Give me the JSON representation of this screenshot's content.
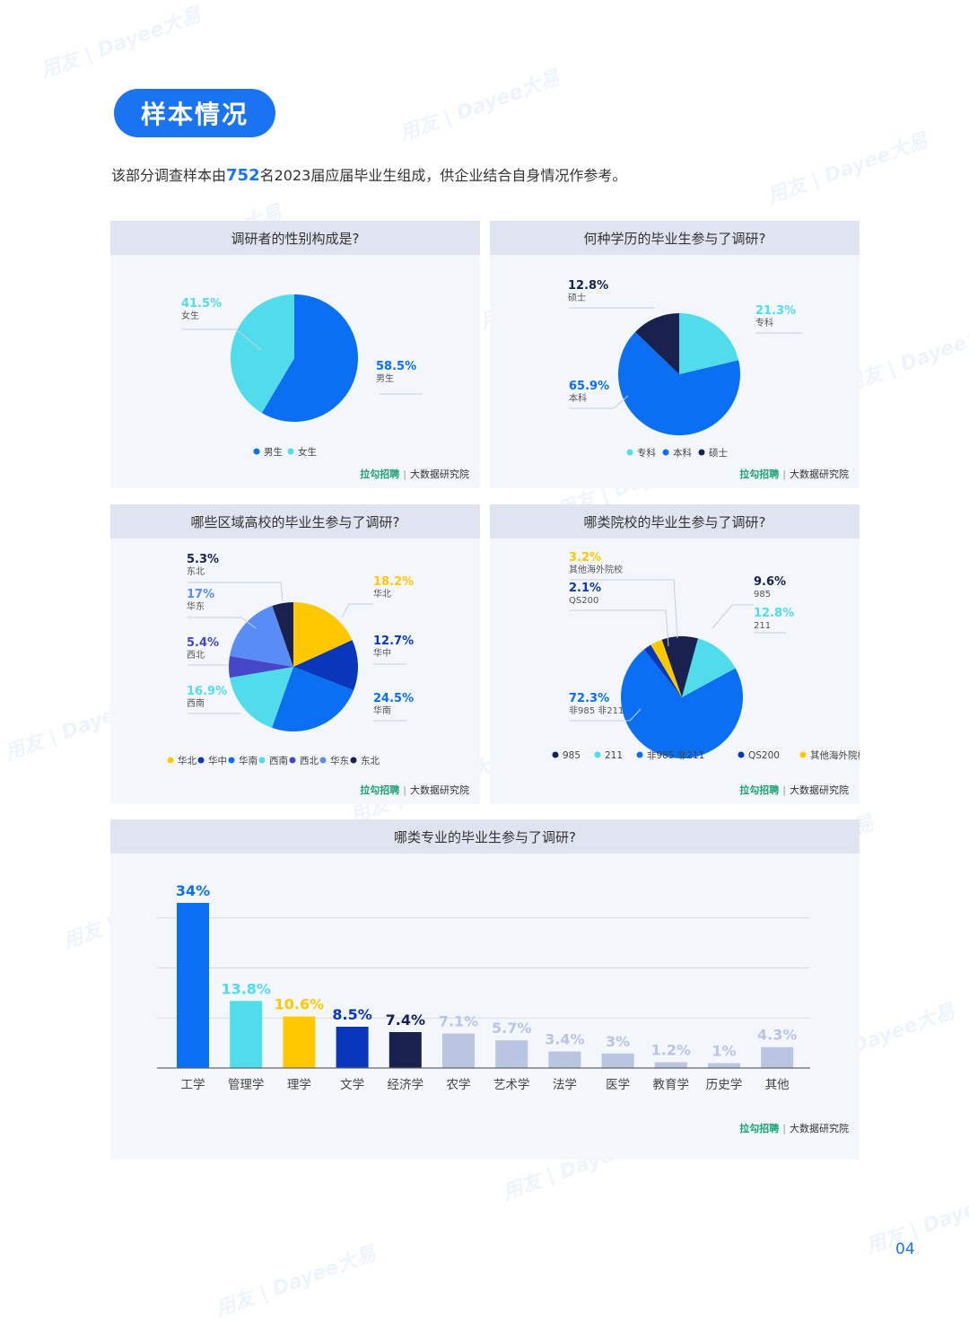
{
  "header": {
    "title": "样本情况",
    "intro_before": "该部分调查样本由",
    "intro_number": "752",
    "intro_after": "名2023届应届毕业生组成，供企业结合自身情况作参考。"
  },
  "brand": {
    "name": "拉勾招聘",
    "separator": "|",
    "unit": "大数据研究院"
  },
  "watermark": "用友 | Dayee大易",
  "page_number": "04",
  "colors": {
    "blue": "#0a6ff0",
    "cyan": "#50dceb",
    "navy": "#19224f",
    "yellow": "#ffc800",
    "darkblue": "#0a37b9",
    "indigo": "#4646c8",
    "periwinkle": "#5a8cf5",
    "lightgray": "#b9c5e1"
  },
  "chart_data": [
    {
      "type": "pie",
      "title": "调研者的性别构成是?",
      "slices": [
        {
          "label": "男生",
          "value": 58.5,
          "display": "58.5%",
          "color": "#0a6ff0"
        },
        {
          "label": "女生",
          "value": 41.5,
          "display": "41.5%",
          "color": "#50dceb"
        }
      ],
      "legend": [
        "男生",
        "女生"
      ],
      "legend_position": "bottom"
    },
    {
      "type": "pie",
      "title": "何种学历的毕业生参与了调研?",
      "slices": [
        {
          "label": "专科",
          "value": 21.3,
          "display": "21.3%",
          "color": "#50dceb"
        },
        {
          "label": "本科",
          "value": 65.9,
          "display": "65.9%",
          "color": "#0a6ff0"
        },
        {
          "label": "硕士",
          "value": 12.8,
          "display": "12.8%",
          "color": "#19224f"
        }
      ],
      "legend": [
        "专科",
        "本科",
        "硕士"
      ],
      "legend_position": "bottom"
    },
    {
      "type": "pie",
      "title": "哪些区域高校的毕业生参与了调研?",
      "slices": [
        {
          "label": "华北",
          "value": 18.2,
          "display": "18.2%",
          "color": "#ffc800"
        },
        {
          "label": "华中",
          "value": 12.7,
          "display": "12.7%",
          "color": "#0a37b9"
        },
        {
          "label": "华南",
          "value": 24.5,
          "display": "24.5%",
          "color": "#0a6ff0"
        },
        {
          "label": "西南",
          "value": 16.9,
          "display": "16.9%",
          "color": "#50dceb"
        },
        {
          "label": "西北",
          "value": 5.4,
          "display": "5.4%",
          "color": "#4646c8"
        },
        {
          "label": "华东",
          "value": 17,
          "display": "17%",
          "color": "#5a8cf5"
        },
        {
          "label": "东北",
          "value": 5.3,
          "display": "5.3%",
          "color": "#19224f"
        }
      ],
      "legend": [
        "华北",
        "华中",
        "华南",
        "西南",
        "西北",
        "华东",
        "东北"
      ],
      "legend_position": "bottom"
    },
    {
      "type": "pie",
      "title": "哪类院校的毕业生参与了调研?",
      "slices": [
        {
          "label": "985",
          "value": 9.6,
          "display": "9.6%",
          "color": "#19224f"
        },
        {
          "label": "211",
          "value": 12.8,
          "display": "12.8%",
          "color": "#50dceb"
        },
        {
          "label": "非985 非211",
          "value": 72.3,
          "display": "72.3%",
          "color": "#0a6ff0"
        },
        {
          "label": "QS200",
          "value": 2.1,
          "display": "2.1%",
          "color": "#0a37b9"
        },
        {
          "label": "其他海外院校",
          "value": 3.2,
          "display": "3.2%",
          "color": "#ffc800"
        }
      ],
      "legend": [
        "985",
        "211",
        "非985 非211",
        "QS200",
        "其他海外院校"
      ],
      "legend_position": "bottom"
    },
    {
      "type": "bar",
      "title": "哪类专业的毕业生参与了调研?",
      "categories": [
        "工学",
        "管理学",
        "理学",
        "文学",
        "经济学",
        "农学",
        "艺术学",
        "法学",
        "医学",
        "教育学",
        "历史学",
        "其他"
      ],
      "values": [
        34,
        13.8,
        10.6,
        8.5,
        7.4,
        7.1,
        5.7,
        3.4,
        3,
        1.2,
        1,
        4.3
      ],
      "labels": [
        "34%",
        "13.8%",
        "10.6%",
        "8.5%",
        "7.4%",
        "7.1%",
        "5.7%",
        "3.4%",
        "3%",
        "1.2%",
        "1%",
        "4.3%"
      ],
      "colors": [
        "#0a6ff0",
        "#50dceb",
        "#ffc800",
        "#0a37b9",
        "#19224f",
        "#b9c5e1",
        "#b9c5e1",
        "#b9c5e1",
        "#b9c5e1",
        "#b9c5e1",
        "#b9c5e1",
        "#b9c5e1"
      ],
      "label_colors": [
        "#0a6ff0",
        "#50dceb",
        "#ffc800",
        "#0a37b9",
        "#19224f",
        "#b9c5e1",
        "#b9c5e1",
        "#b9c5e1",
        "#b9c5e1",
        "#b9c5e1",
        "#b9c5e1",
        "#b9c5e1"
      ],
      "ylim": [
        0,
        34
      ],
      "grid": true
    }
  ]
}
